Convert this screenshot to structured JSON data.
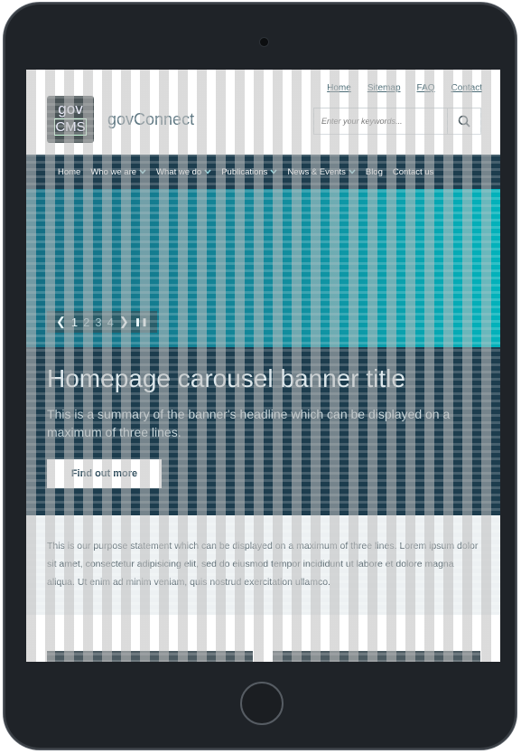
{
  "utility_links": [
    "Home",
    "Sitemap",
    "FAQ",
    "Contact"
  ],
  "logo": {
    "line1": "gov",
    "line2": "CMS"
  },
  "site_name": "govConnect",
  "search": {
    "placeholder": "Enter your keywords..."
  },
  "nav": {
    "items": [
      {
        "label": "Home",
        "dropdown": false
      },
      {
        "label": "Who we are",
        "dropdown": true
      },
      {
        "label": "What we do",
        "dropdown": true
      },
      {
        "label": "Publications",
        "dropdown": true
      },
      {
        "label": "News & Events",
        "dropdown": true
      },
      {
        "label": "Blog",
        "dropdown": false
      },
      {
        "label": "Contact us",
        "dropdown": false
      }
    ]
  },
  "carousel": {
    "pages": [
      "1",
      "2",
      "3",
      "4"
    ],
    "current_page": "1",
    "prev_symbol": "❮",
    "next_symbol": "❯",
    "pause_symbol": "❚❚"
  },
  "banner": {
    "title": "Homepage carousel banner title",
    "summary": "This is a summary of the banner's headline which can be displayed on a maximum of three lines.",
    "button": "Find out more"
  },
  "purpose": {
    "text": "This is our purpose statement which can be displayed on a maximum of three lines. Lorem ipsum dolor sit amet, consectetur adipisicing elit, sed do eiusmod tempor incididunt ut labore et dolore magna aliqua. Ut enim ad minim veniam, quis nostrud exercitation ullamco."
  },
  "colors": {
    "nav_bg": "#1d3d4e",
    "carousel_left": "#146e84",
    "carousel_right": "#03b2bb",
    "purpose_bg": "#edf1f3"
  }
}
